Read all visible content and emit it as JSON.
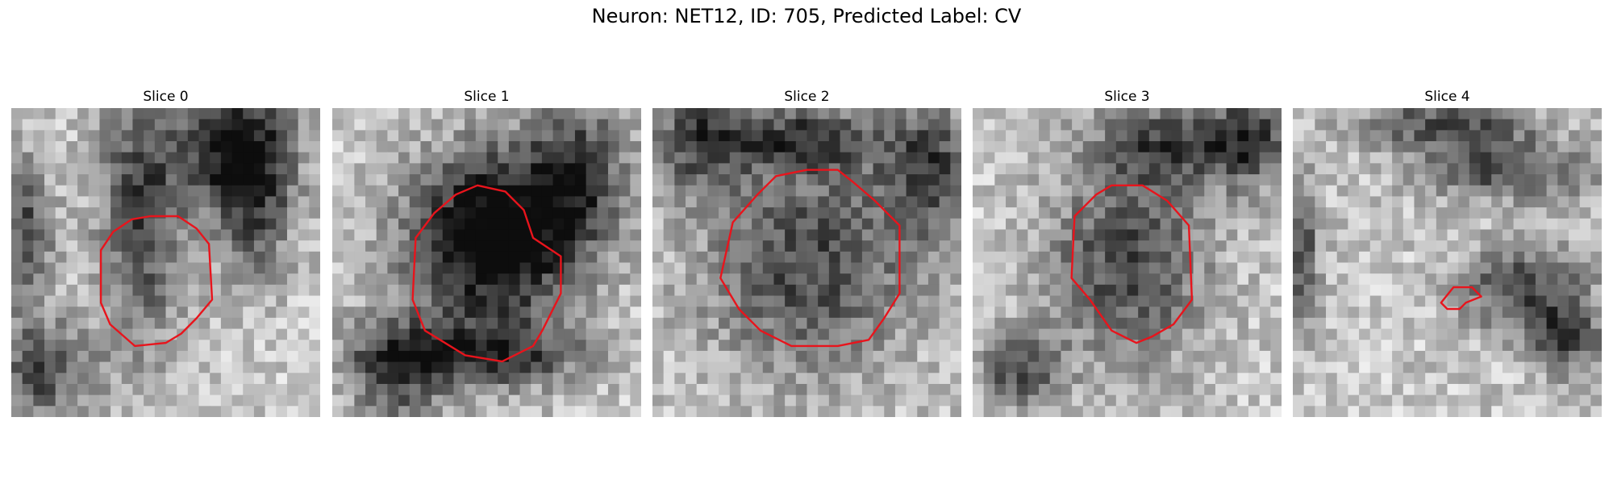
{
  "figure": {
    "title": "Neuron: NET12, ID: 705, Predicted Label: CV"
  },
  "panels": [
    {
      "title": "Slice 0",
      "seed": 11,
      "darkness": [
        [
          0.42,
          0.35,
          0.18,
          0.55
        ],
        [
          0.78,
          0.27,
          0.17,
          0.35
        ],
        [
          0.7,
          0.12,
          0.25,
          0.25
        ],
        [
          0.1,
          0.85,
          0.2,
          0.2
        ],
        [
          0.05,
          0.4,
          0.1,
          0.3
        ]
      ],
      "contour": [
        [
          0.29,
          0.46
        ],
        [
          0.33,
          0.4
        ],
        [
          0.39,
          0.36
        ],
        [
          0.45,
          0.35
        ],
        [
          0.54,
          0.35
        ],
        [
          0.6,
          0.39
        ],
        [
          0.64,
          0.44
        ],
        [
          0.65,
          0.62
        ],
        [
          0.6,
          0.68
        ],
        [
          0.55,
          0.73
        ],
        [
          0.5,
          0.76
        ],
        [
          0.4,
          0.77
        ],
        [
          0.32,
          0.7
        ],
        [
          0.29,
          0.63
        ]
      ]
    },
    {
      "title": "Slice 1",
      "seed": 23,
      "darkness": [
        [
          0.5,
          0.5,
          0.35,
          0.38
        ],
        [
          0.55,
          0.35,
          0.32,
          0.3
        ],
        [
          0.8,
          0.2,
          0.2,
          0.3
        ],
        [
          0.5,
          0.8,
          0.4,
          0.12
        ],
        [
          0.2,
          0.85,
          0.2,
          0.2
        ]
      ],
      "contour": [
        [
          0.27,
          0.42
        ],
        [
          0.33,
          0.34
        ],
        [
          0.4,
          0.28
        ],
        [
          0.47,
          0.25
        ],
        [
          0.56,
          0.27
        ],
        [
          0.62,
          0.33
        ],
        [
          0.65,
          0.42
        ],
        [
          0.74,
          0.48
        ],
        [
          0.74,
          0.6
        ],
        [
          0.68,
          0.72
        ],
        [
          0.65,
          0.77
        ],
        [
          0.55,
          0.82
        ],
        [
          0.43,
          0.8
        ],
        [
          0.3,
          0.72
        ],
        [
          0.26,
          0.62
        ]
      ]
    },
    {
      "title": "Slice 2",
      "seed": 37,
      "darkness": [
        [
          0.5,
          0.5,
          0.42,
          0.46
        ],
        [
          0.9,
          0.2,
          0.2,
          0.3
        ],
        [
          0.15,
          0.1,
          0.2,
          0.2
        ],
        [
          0.5,
          0.1,
          0.3,
          0.12
        ]
      ],
      "contour": [
        [
          0.26,
          0.37
        ],
        [
          0.34,
          0.28
        ],
        [
          0.4,
          0.22
        ],
        [
          0.5,
          0.2
        ],
        [
          0.6,
          0.2
        ],
        [
          0.65,
          0.24
        ],
        [
          0.72,
          0.3
        ],
        [
          0.8,
          0.38
        ],
        [
          0.8,
          0.6
        ],
        [
          0.75,
          0.68
        ],
        [
          0.7,
          0.75
        ],
        [
          0.6,
          0.77
        ],
        [
          0.45,
          0.77
        ],
        [
          0.35,
          0.72
        ],
        [
          0.28,
          0.65
        ],
        [
          0.22,
          0.55
        ]
      ]
    },
    {
      "title": "Slice 3",
      "seed": 53,
      "darkness": [
        [
          0.5,
          0.5,
          0.32,
          0.42
        ],
        [
          0.65,
          0.12,
          0.3,
          0.15
        ],
        [
          0.9,
          0.1,
          0.15,
          0.2
        ],
        [
          0.15,
          0.85,
          0.15,
          0.15
        ]
      ],
      "contour": [
        [
          0.33,
          0.35
        ],
        [
          0.4,
          0.28
        ],
        [
          0.45,
          0.25
        ],
        [
          0.55,
          0.25
        ],
        [
          0.63,
          0.3
        ],
        [
          0.7,
          0.38
        ],
        [
          0.71,
          0.62
        ],
        [
          0.65,
          0.7
        ],
        [
          0.58,
          0.74
        ],
        [
          0.53,
          0.76
        ],
        [
          0.45,
          0.72
        ],
        [
          0.38,
          0.62
        ],
        [
          0.32,
          0.55
        ]
      ]
    },
    {
      "title": "Slice 4",
      "seed": 71,
      "darkness": [
        [
          0.75,
          0.58,
          0.26,
          0.18
        ],
        [
          0.88,
          0.75,
          0.15,
          0.15
        ],
        [
          0.7,
          0.2,
          0.35,
          0.12
        ],
        [
          0.02,
          0.45,
          0.08,
          0.3
        ],
        [
          0.5,
          0.05,
          0.35,
          0.1
        ]
      ],
      "contour": [
        [
          0.48,
          0.63
        ],
        [
          0.52,
          0.58
        ],
        [
          0.58,
          0.58
        ],
        [
          0.61,
          0.61
        ],
        [
          0.56,
          0.63
        ],
        [
          0.54,
          0.65
        ],
        [
          0.5,
          0.65
        ]
      ]
    }
  ]
}
